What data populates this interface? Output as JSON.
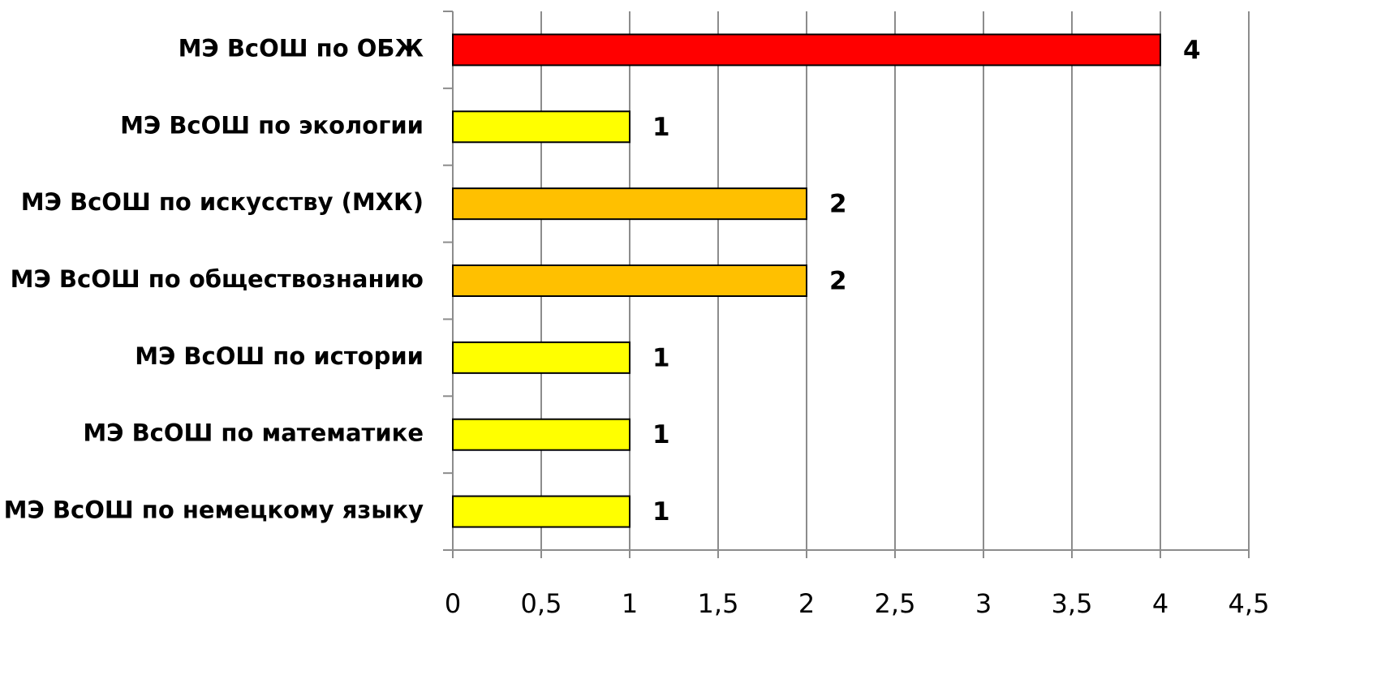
{
  "chart_data": {
    "type": "bar",
    "orientation": "horizontal",
    "categories": [
      "МЭ ВсОШ по ОБЖ",
      "МЭ ВсОШ по экологии",
      "МЭ ВсОШ по искусству (МХК)",
      "МЭ ВсОШ по обществознанию",
      "МЭ ВсОШ по истории",
      "МЭ ВсОШ по математике",
      "МЭ ВсОШ по немецкому языку"
    ],
    "values": [
      4,
      1,
      2,
      2,
      1,
      1,
      1
    ],
    "colors": [
      "#ff0000",
      "#ffff00",
      "#ffc000",
      "#ffc000",
      "#ffff00",
      "#ffff00",
      "#ffff00"
    ],
    "xlim": [
      0,
      4.5
    ],
    "xticks": [
      0,
      {
        "value": 0.5,
        "label": "0,5"
      },
      1,
      {
        "value": 1.5,
        "label": "1,5"
      },
      2,
      {
        "value": 2.5,
        "label": "2,5"
      },
      3,
      {
        "value": 3.5,
        "label": "3,5"
      },
      4,
      {
        "value": 4.5,
        "label": "4,5"
      }
    ],
    "grid": true
  }
}
